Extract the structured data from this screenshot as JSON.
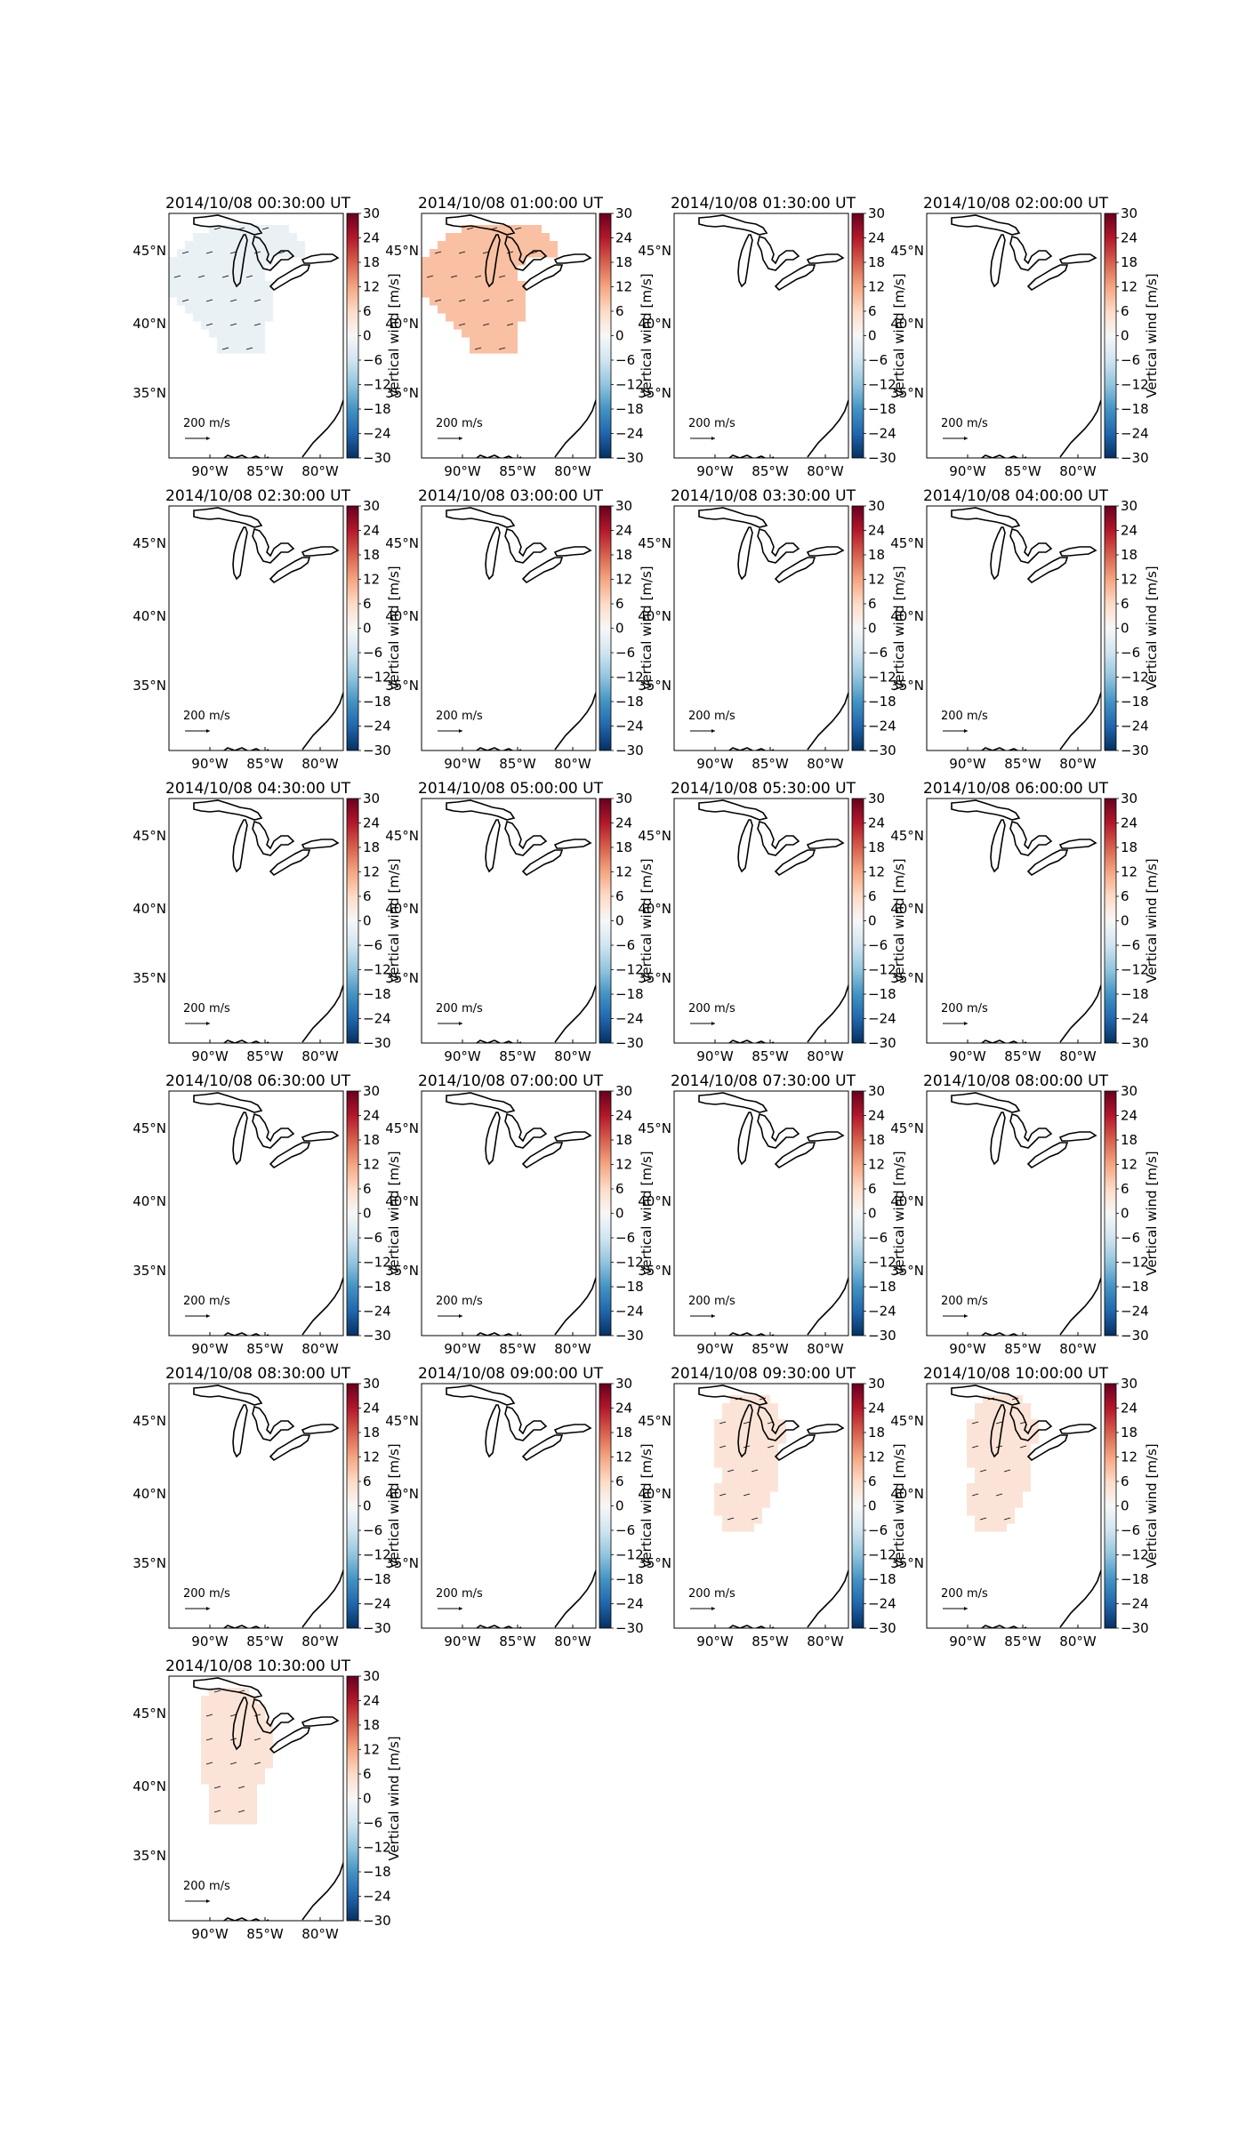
{
  "figure": {
    "colorbar_label": "Vertical wind [m/s]",
    "colorbar_ticks": [
      30,
      24,
      18,
      12,
      6,
      0,
      -6,
      -12,
      -18,
      -24,
      -30
    ],
    "colorbar_range": [
      -30,
      30
    ],
    "colormap": "RdBu_r",
    "scale_arrow_label": "200 m/s",
    "x_ticks": [
      "90°W",
      "85°W",
      "80°W"
    ],
    "y_ticks": [
      "45°N",
      "40°N",
      "35°N"
    ],
    "colors": {
      "strong_negative": "#053061",
      "strong_positive": "#67001f",
      "zero": "#f7f7f7"
    }
  },
  "chart_data": [
    {
      "type": "heatmap",
      "title": "2014/10/08 00:30:00 UT",
      "value": -2,
      "region": "west",
      "lon_range": [
        -95.5,
        -80
      ],
      "lat_range": [
        30,
        47.5
      ]
    },
    {
      "type": "heatmap",
      "title": "2014/10/08 01:00:00 UT",
      "value": 9,
      "region": "west",
      "lon_range": [
        -95.5,
        -80
      ],
      "lat_range": [
        30,
        47.5
      ]
    },
    {
      "type": "heatmap",
      "title": "2014/10/08 01:30:00 UT",
      "value": null,
      "region": null
    },
    {
      "type": "heatmap",
      "title": "2014/10/08 02:00:00 UT",
      "value": null,
      "region": null
    },
    {
      "type": "heatmap",
      "title": "2014/10/08 02:30:00 UT",
      "value": null,
      "region": null
    },
    {
      "type": "heatmap",
      "title": "2014/10/08 03:00:00 UT",
      "value": null,
      "region": null
    },
    {
      "type": "heatmap",
      "title": "2014/10/08 03:30:00 UT",
      "value": null,
      "region": null
    },
    {
      "type": "heatmap",
      "title": "2014/10/08 04:00:00 UT",
      "value": null,
      "region": null
    },
    {
      "type": "heatmap",
      "title": "2014/10/08 04:30:00 UT",
      "value": null,
      "region": null
    },
    {
      "type": "heatmap",
      "title": "2014/10/08 05:00:00 UT",
      "value": null,
      "region": null
    },
    {
      "type": "heatmap",
      "title": "2014/10/08 05:30:00 UT",
      "value": null,
      "region": null
    },
    {
      "type": "heatmap",
      "title": "2014/10/08 06:00:00 UT",
      "value": null,
      "region": null
    },
    {
      "type": "heatmap",
      "title": "2014/10/08 06:30:00 UT",
      "value": null,
      "region": null
    },
    {
      "type": "heatmap",
      "title": "2014/10/08 07:00:00 UT",
      "value": null,
      "region": null
    },
    {
      "type": "heatmap",
      "title": "2014/10/08 07:30:00 UT",
      "value": null,
      "region": null
    },
    {
      "type": "heatmap",
      "title": "2014/10/08 08:00:00 UT",
      "value": null,
      "region": null
    },
    {
      "type": "heatmap",
      "title": "2014/10/08 08:30:00 UT",
      "value": null,
      "region": null
    },
    {
      "type": "heatmap",
      "title": "2014/10/08 09:00:00 UT",
      "value": null,
      "region": null
    },
    {
      "type": "heatmap",
      "title": "2014/10/08 09:30:00 UT",
      "value": 4,
      "region": "east",
      "lon_range": [
        -95.5,
        -80
      ],
      "lat_range": [
        30,
        47.5
      ]
    },
    {
      "type": "heatmap",
      "title": "2014/10/08 10:00:00 UT",
      "value": 4,
      "region": "east",
      "lon_range": [
        -95.5,
        -80
      ],
      "lat_range": [
        30,
        47.5
      ]
    },
    {
      "type": "heatmap",
      "title": "2014/10/08 10:30:00 UT",
      "value": 4,
      "region": "central",
      "lon_range": [
        -95.5,
        -80
      ],
      "lat_range": [
        30,
        47.5
      ]
    }
  ]
}
